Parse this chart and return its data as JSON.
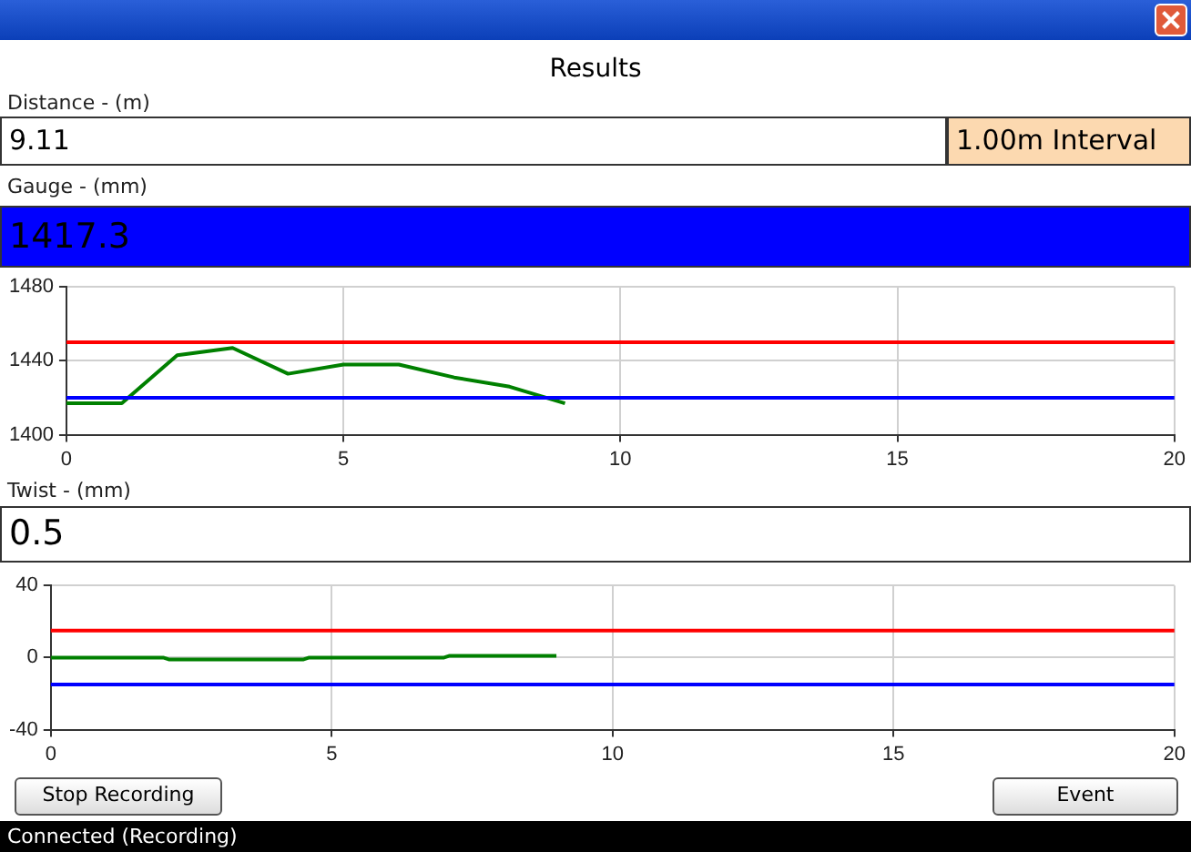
{
  "chart_data": [
    {
      "type": "line",
      "title": "Results",
      "annotations": [
        "Distance - (m)",
        "9.11",
        "1.00m Interval",
        "Gauge - (mm)",
        "1417.3"
      ],
      "series": [
        {
          "color": "#008000",
          "x": [
            0,
            1,
            2,
            3,
            4,
            5,
            6,
            7,
            8,
            9
          ],
          "values": [
            1417,
            1417,
            1443,
            1447,
            1433,
            1438,
            1438,
            1431,
            1426,
            1417
          ]
        }
      ],
      "xlim": [
        0,
        20
      ],
      "xticks": [
        0,
        5,
        10,
        15,
        20
      ],
      "ylim": [
        1400,
        1480
      ],
      "yticks": [
        1400,
        1440,
        1480
      ],
      "grid": true,
      "legend": false,
      "marker": "none",
      "ref_lines": [
        {
          "axis": "y",
          "value": 1450,
          "color": "#ff0000"
        },
        {
          "axis": "y",
          "value": 1420,
          "color": "#0000ff"
        }
      ]
    },
    {
      "type": "line",
      "annotations": [
        "Twist - (mm)",
        "0.5",
        "Stop Recording",
        "Event",
        "Connected (Recording)"
      ],
      "series": [
        {
          "color": "#008000",
          "x": [
            0,
            2,
            2.1,
            4.5,
            4.6,
            7,
            7.1,
            9
          ],
          "values": [
            0,
            0,
            -1,
            -1,
            0,
            0,
            1,
            1
          ]
        }
      ],
      "xlim": [
        0,
        20
      ],
      "xticks": [
        0,
        5,
        10,
        15,
        20
      ],
      "ylim": [
        -40,
        40
      ],
      "yticks": [
        -40,
        0,
        40
      ],
      "grid": true,
      "legend": false,
      "marker": "none",
      "ref_lines": [
        {
          "axis": "y",
          "value": 15,
          "color": "#ff0000"
        },
        {
          "axis": "y",
          "value": -15,
          "color": "#0000ff"
        }
      ]
    }
  ]
}
